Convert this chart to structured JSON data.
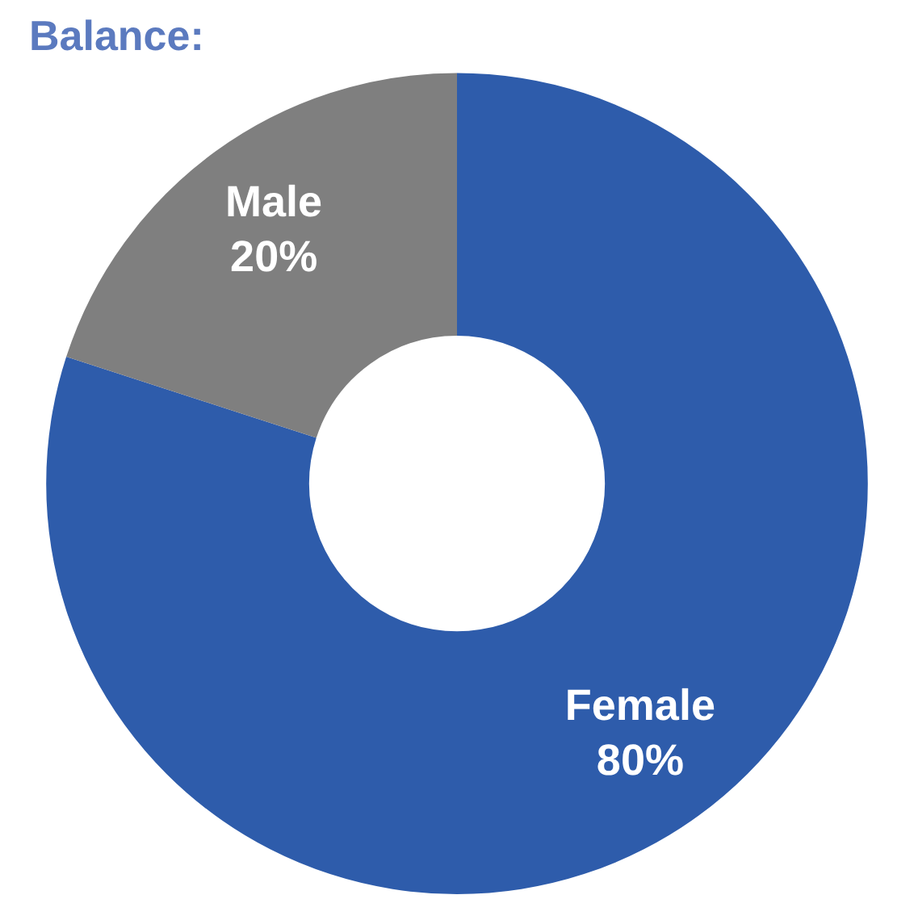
{
  "chart_data": {
    "type": "donut",
    "title": "Balance:",
    "categories": [
      "Female",
      "Male"
    ],
    "values": [
      80,
      20
    ],
    "colors": [
      "#2e5cab",
      "#7f7f7f"
    ],
    "value_labels": [
      "80%",
      "20%"
    ],
    "legend": false
  }
}
